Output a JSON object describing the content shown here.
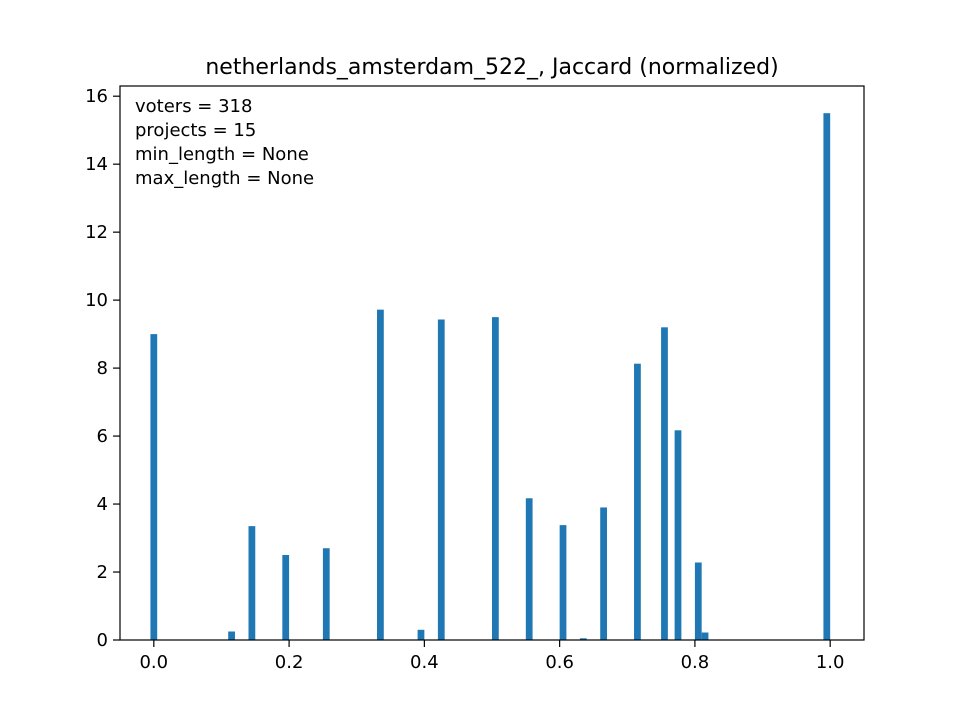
{
  "chart_data": {
    "type": "bar",
    "title": "netherlands_amsterdam_522_, Jaccard (normalized)",
    "xlabel": "",
    "ylabel": "",
    "xlim": [
      -0.05,
      1.05
    ],
    "ylim": [
      0,
      16.3
    ],
    "grid": false,
    "bar_color": "#1f77b4",
    "bar_width": 0.01,
    "x": [
      0.0,
      0.115,
      0.145,
      0.195,
      0.255,
      0.335,
      0.395,
      0.425,
      0.505,
      0.555,
      0.605,
      0.635,
      0.665,
      0.715,
      0.755,
      0.775,
      0.805,
      0.815,
      0.995
    ],
    "values": [
      9.0,
      0.25,
      3.35,
      2.5,
      2.7,
      9.72,
      0.3,
      9.43,
      9.5,
      4.17,
      3.38,
      0.05,
      3.9,
      8.13,
      9.2,
      6.17,
      2.28,
      0.22,
      15.5
    ],
    "xticks": [
      {
        "value": 0.0,
        "label": "0.0"
      },
      {
        "value": 0.2,
        "label": "0.2"
      },
      {
        "value": 0.4,
        "label": "0.4"
      },
      {
        "value": 0.6,
        "label": "0.6"
      },
      {
        "value": 0.8,
        "label": "0.8"
      },
      {
        "value": 1.0,
        "label": "1.0"
      }
    ],
    "yticks": [
      {
        "value": 0,
        "label": "0"
      },
      {
        "value": 2,
        "label": "2"
      },
      {
        "value": 4,
        "label": "4"
      },
      {
        "value": 6,
        "label": "6"
      },
      {
        "value": 8,
        "label": "8"
      },
      {
        "value": 10,
        "label": "10"
      },
      {
        "value": 12,
        "label": "12"
      },
      {
        "value": 14,
        "label": "14"
      },
      {
        "value": 16,
        "label": "16"
      }
    ],
    "annotations": [
      "voters = 318",
      "projects = 15",
      "min_length = None",
      "max_length = None"
    ]
  }
}
